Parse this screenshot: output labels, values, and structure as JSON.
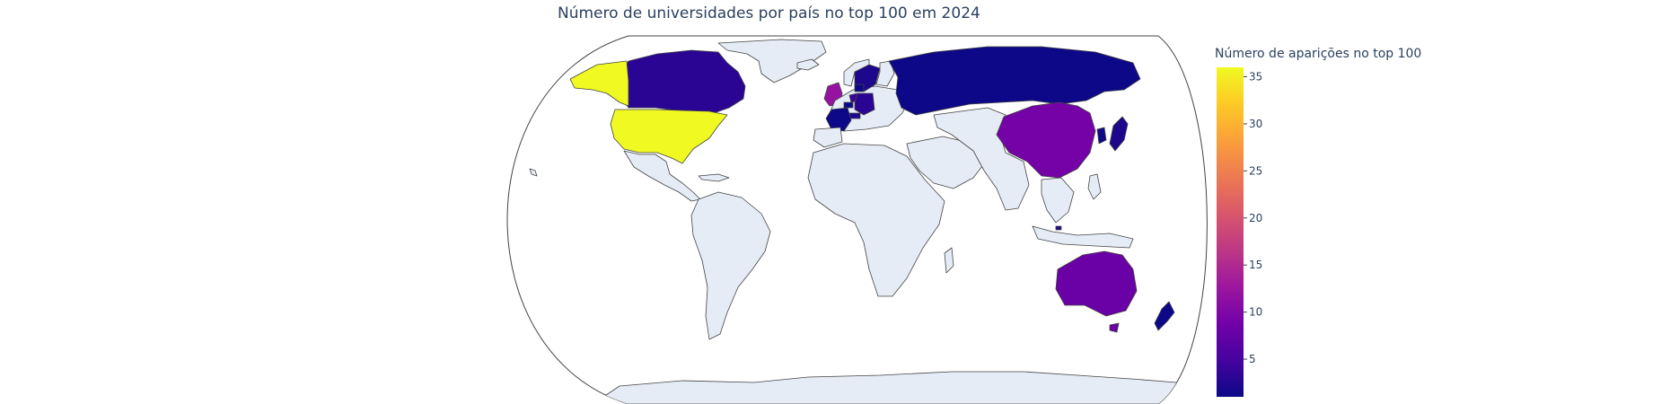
{
  "title": "Número de universidades por país no top 100 em 2024",
  "colorbar": {
    "title": "Número de aparições no top 100",
    "ticks": [
      5,
      10,
      15,
      20,
      25,
      30,
      35
    ],
    "min": 1,
    "max": 36,
    "colorscale": [
      "#0d0887",
      "#46039f",
      "#7201a8",
      "#9c179e",
      "#bd3786",
      "#d8576b",
      "#ed7953",
      "#fb9f3a",
      "#fdca26",
      "#f0f921"
    ]
  },
  "colors": {
    "land": "#e5ecf6",
    "border": "#444444",
    "ocean": "#ffffff",
    "text": "#2a3f5f"
  },
  "chart_data": {
    "type": "choropleth",
    "projection": "natural earth",
    "title": "Número de universidades por país no top 100 em 2024",
    "colorbar_title": "Número de aparições no top 100",
    "color_range": [
      1,
      36
    ],
    "values": [
      {
        "country": "United States",
        "value": 36
      },
      {
        "country": "China",
        "value": 9
      },
      {
        "country": "Australia",
        "value": 8
      },
      {
        "country": "United Kingdom",
        "value": 12
      },
      {
        "country": "Netherlands",
        "value": 4
      },
      {
        "country": "Germany",
        "value": 3
      },
      {
        "country": "Canada",
        "value": 3
      },
      {
        "country": "Switzerland",
        "value": 2
      },
      {
        "country": "Sweden",
        "value": 2
      },
      {
        "country": "Denmark",
        "value": 1
      },
      {
        "country": "Belgium",
        "value": 1
      },
      {
        "country": "France",
        "value": 1
      },
      {
        "country": "Russia",
        "value": 1
      },
      {
        "country": "Japan",
        "value": 2
      },
      {
        "country": "South Korea",
        "value": 1
      },
      {
        "country": "Singapore",
        "value": 2
      },
      {
        "country": "New Zealand",
        "value": 1
      }
    ]
  }
}
